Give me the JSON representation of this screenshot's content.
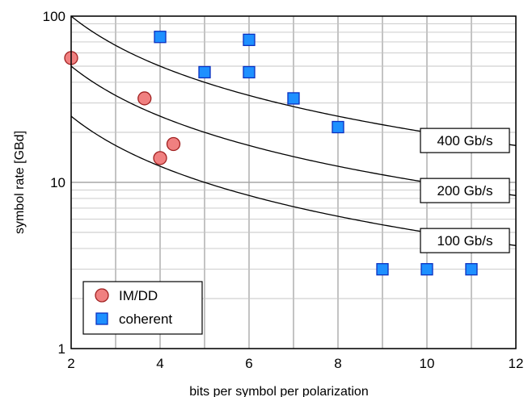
{
  "chart_data": {
    "type": "scatter",
    "xlabel": "bits per symbol per polarization",
    "ylabel": "symbol rate [GBd]",
    "xlim": [
      2,
      12
    ],
    "ylim": [
      1,
      100
    ],
    "yscale": "log",
    "grid": true,
    "legend_position": "bottom-left",
    "x_ticks": [
      "2",
      "4",
      "6",
      "8",
      "10",
      "12"
    ],
    "y_ticks": [
      "1",
      "10",
      "100"
    ],
    "series": [
      {
        "name": "IM/DD",
        "marker": "circle",
        "color": "#f08080",
        "points": [
          {
            "x": 2.0,
            "y": 56
          },
          {
            "x": 3.65,
            "y": 32
          },
          {
            "x": 4.0,
            "y": 14
          },
          {
            "x": 4.3,
            "y": 17
          }
        ]
      },
      {
        "name": "coherent",
        "marker": "square",
        "color": "#1e90ff",
        "points": [
          {
            "x": 4,
            "y": 75
          },
          {
            "x": 5,
            "y": 46
          },
          {
            "x": 6,
            "y": 72
          },
          {
            "x": 6,
            "y": 46
          },
          {
            "x": 7,
            "y": 32
          },
          {
            "x": 8,
            "y": 21.5
          },
          {
            "x": 9,
            "y": 3
          },
          {
            "x": 10,
            "y": 3
          },
          {
            "x": 11,
            "y": 3
          }
        ]
      }
    ],
    "reference_curves": [
      {
        "label": "100 Gb/s",
        "capacity": 100
      },
      {
        "label": "200 Gb/s",
        "capacity": 200
      },
      {
        "label": "400 Gb/s",
        "capacity": 400
      }
    ]
  }
}
